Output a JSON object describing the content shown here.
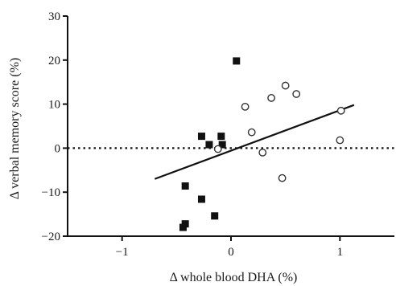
{
  "chart_data": {
    "type": "scatter",
    "title": "",
    "xlabel": "Δ whole blood DHA (%)",
    "ylabel": "Δ verbal memory score (%)",
    "xlim": [
      -1.5,
      1.5
    ],
    "ylim": [
      -20,
      30
    ],
    "x_ticks": [
      -1,
      0,
      1
    ],
    "y_ticks": [
      -20,
      -10,
      0,
      10,
      20,
      30
    ],
    "x_tick_labels": [
      "−1",
      "0",
      "1"
    ],
    "y_tick_labels": [
      "−20",
      "−10",
      "0",
      "10",
      "20",
      "30"
    ],
    "grid": false,
    "legend": "none",
    "reference_line": {
      "y": 0,
      "style": "dotted"
    },
    "series": [
      {
        "marker": "filled-square",
        "color": "#111111",
        "points": [
          {
            "x": 0.05,
            "y": 19.8
          },
          {
            "x": -0.27,
            "y": 2.7
          },
          {
            "x": -0.2,
            "y": 0.8
          },
          {
            "x": -0.09,
            "y": 2.7
          },
          {
            "x": -0.08,
            "y": 0.8
          },
          {
            "x": -0.42,
            "y": -8.6
          },
          {
            "x": -0.27,
            "y": -11.6
          },
          {
            "x": -0.15,
            "y": -15.4
          },
          {
            "x": -0.42,
            "y": -17.2
          },
          {
            "x": -0.44,
            "y": -18.0
          }
        ]
      },
      {
        "marker": "open-circle",
        "color": "#333333",
        "points": [
          {
            "x": 0.13,
            "y": 9.4
          },
          {
            "x": 0.19,
            "y": 3.6
          },
          {
            "x": 0.29,
            "y": -1.0
          },
          {
            "x": 0.37,
            "y": 11.4
          },
          {
            "x": 0.47,
            "y": -6.8
          },
          {
            "x": 0.5,
            "y": 14.2
          },
          {
            "x": 0.6,
            "y": 12.3
          },
          {
            "x": 1.01,
            "y": 8.5
          },
          {
            "x": 1.0,
            "y": 1.8
          },
          {
            "x": -0.12,
            "y": -0.2
          }
        ]
      }
    ],
    "regression_line": {
      "x": [
        -0.7,
        1.13
      ],
      "y": [
        -7.0,
        9.8
      ]
    }
  }
}
